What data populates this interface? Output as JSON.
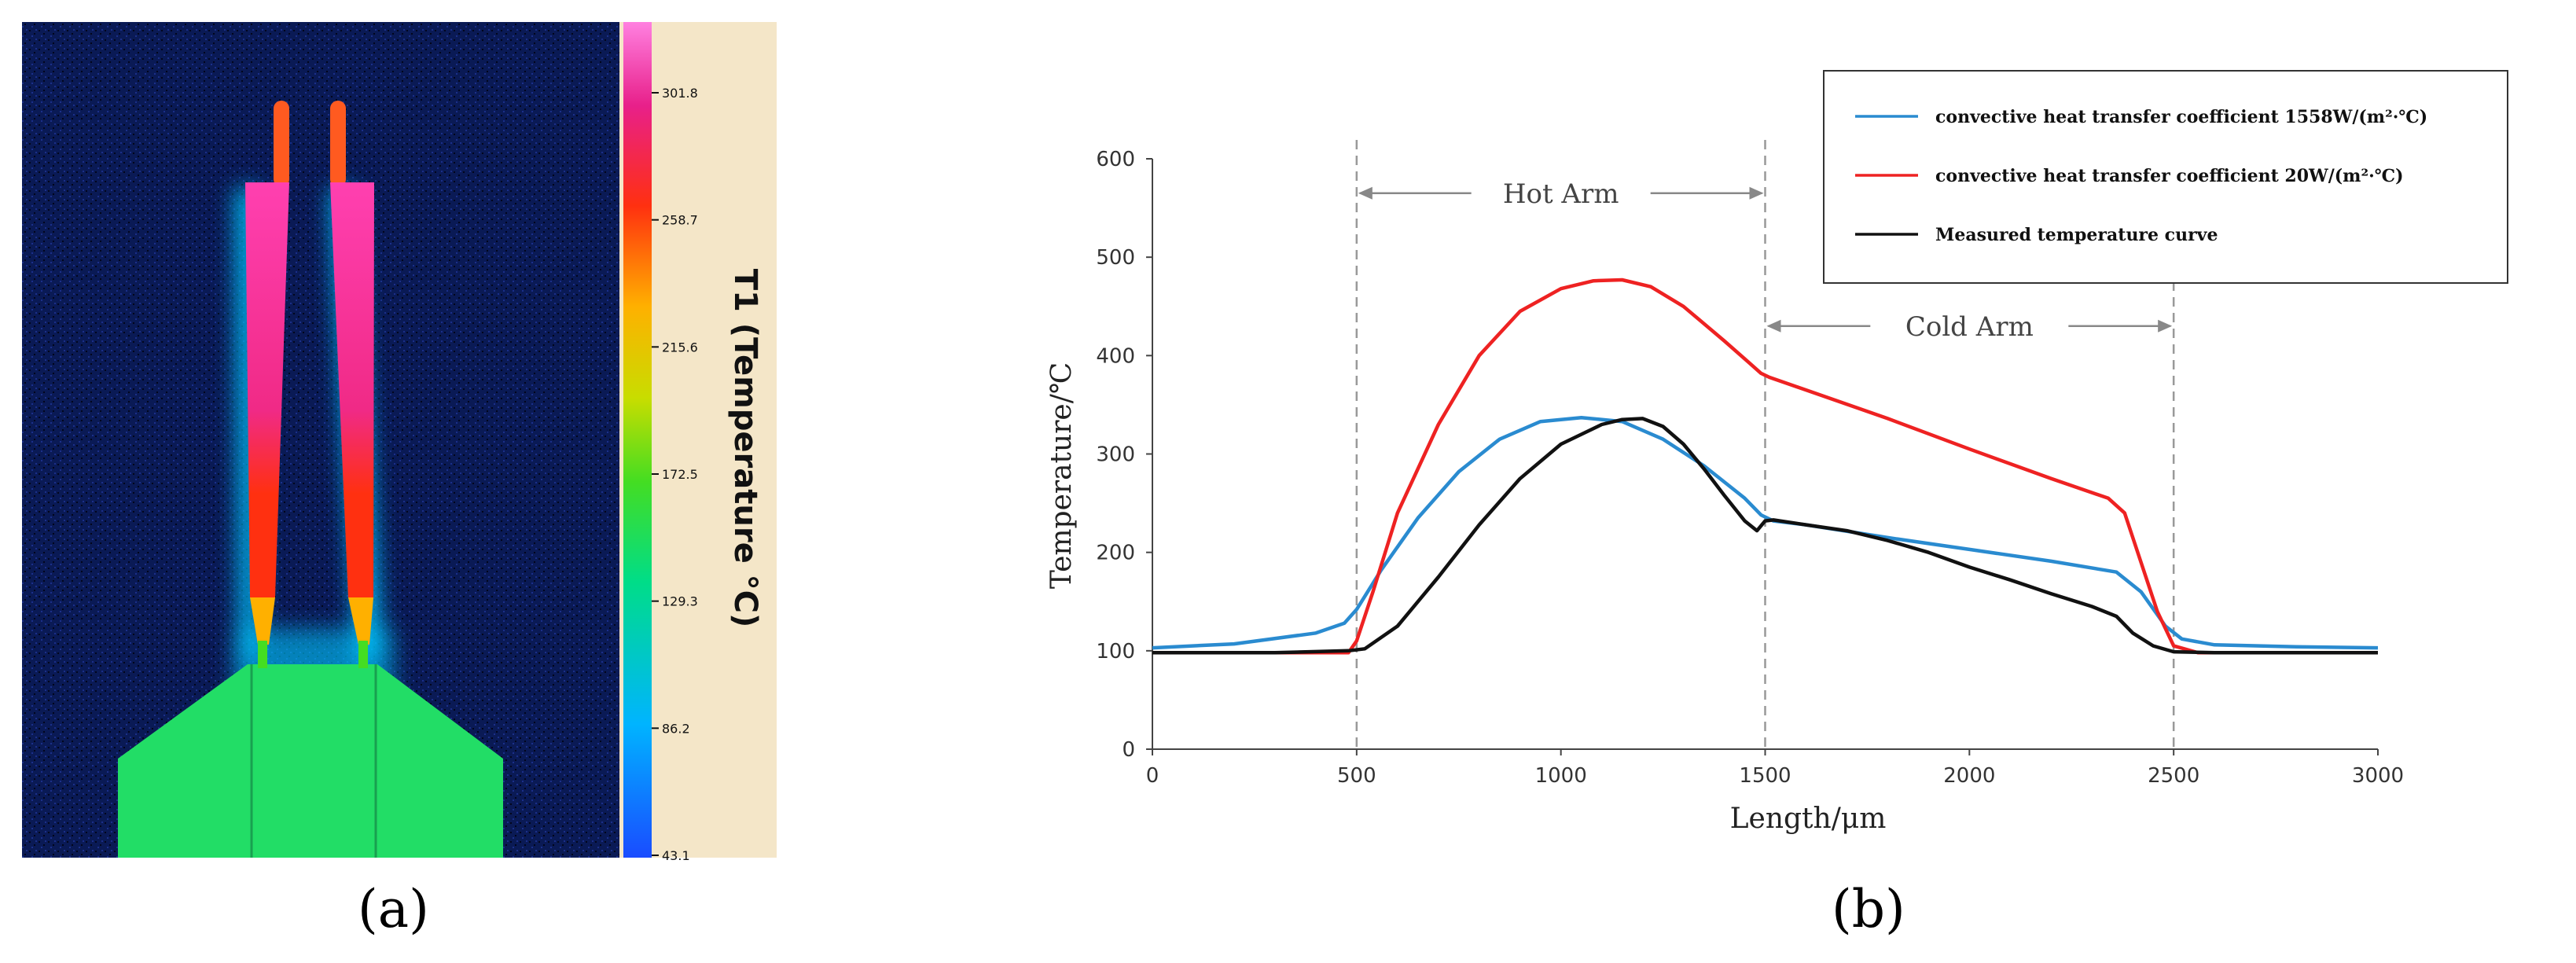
{
  "panel_a": {
    "label": "(a)",
    "colorbar": {
      "title": "T1 (Temperature °C)",
      "ticks": [
        "301.8",
        "258.7",
        "215.6",
        "172.5",
        "129.3",
        "86.2",
        "43.1"
      ],
      "min": 43.1,
      "max": 301.8
    },
    "colors": {
      "background": "#0a1a55",
      "base": "#22dd66",
      "hot": "#ff2aa0",
      "warm": "#ff3010",
      "glow": "#00c8ff",
      "colorbar_panel": "#f4e6c8"
    }
  },
  "panel_b": {
    "label": "(b)",
    "chart_data": {
      "type": "line",
      "title": "",
      "xlabel": "Length/μm",
      "ylabel": "Temperature/℃",
      "xlim": [
        0,
        3000
      ],
      "ylim": [
        0,
        600
      ],
      "xticks": [
        "0",
        "500",
        "1000",
        "1500",
        "2000",
        "2500",
        "3000"
      ],
      "yticks": [
        "0",
        "100",
        "200",
        "300",
        "400",
        "500",
        "600"
      ],
      "grid": false,
      "legend_position": "top-right",
      "series": [
        {
          "name": "convective heat transfer coefficient 1558W/(m²·℃)",
          "color": "#2a8bd0",
          "x": [
            0,
            200,
            400,
            470,
            500,
            560,
            650,
            750,
            850,
            950,
            1050,
            1150,
            1250,
            1350,
            1450,
            1490,
            1520,
            1600,
            1800,
            2000,
            2200,
            2360,
            2420,
            2480,
            2520,
            2600,
            2800,
            3000
          ],
          "y": [
            103,
            107,
            118,
            128,
            142,
            182,
            235,
            282,
            315,
            333,
            337,
            333,
            315,
            288,
            255,
            238,
            232,
            228,
            215,
            203,
            191,
            180,
            160,
            125,
            112,
            106,
            104,
            103
          ]
        },
        {
          "name": "convective heat transfer coefficient 20W/(m²·℃)",
          "color": "#ee2222",
          "x": [
            0,
            200,
            400,
            480,
            500,
            540,
            600,
            700,
            800,
            900,
            1000,
            1080,
            1150,
            1220,
            1300,
            1400,
            1460,
            1490,
            1510,
            1600,
            1800,
            2000,
            2200,
            2340,
            2380,
            2420,
            2460,
            2500,
            2560,
            2800,
            3000
          ],
          "y": [
            98,
            98,
            98,
            98,
            110,
            160,
            240,
            330,
            400,
            445,
            468,
            476,
            477,
            470,
            450,
            415,
            393,
            382,
            378,
            365,
            336,
            305,
            275,
            255,
            240,
            190,
            140,
            105,
            98,
            98,
            98
          ]
        },
        {
          "name": "Measured temperature curve",
          "color": "#111111",
          "x": [
            0,
            300,
            480,
            520,
            600,
            700,
            800,
            900,
            1000,
            1050,
            1100,
            1150,
            1200,
            1250,
            1300,
            1350,
            1400,
            1450,
            1480,
            1500,
            1520,
            1600,
            1700,
            1800,
            1900,
            2000,
            2100,
            2200,
            2300,
            2360,
            2400,
            2450,
            2500,
            2600,
            2800,
            3000
          ],
          "y": [
            98,
            98,
            100,
            102,
            125,
            175,
            228,
            275,
            310,
            320,
            330,
            335,
            336,
            328,
            310,
            285,
            258,
            232,
            222,
            232,
            233,
            228,
            222,
            212,
            200,
            185,
            172,
            158,
            145,
            135,
            118,
            105,
            99,
            98,
            98,
            98
          ]
        }
      ],
      "annotations": [
        {
          "text": "Hot Arm",
          "from": 500,
          "to": 1500,
          "y": 565
        },
        {
          "text": "Cold Arm",
          "from": 1500,
          "to": 2500,
          "y": 430
        }
      ],
      "vlines": [
        500,
        1500,
        2500
      ]
    }
  }
}
